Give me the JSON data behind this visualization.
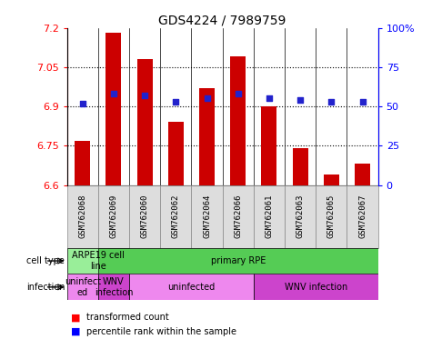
{
  "title": "GDS4224 / 7989759",
  "samples": [
    "GSM762068",
    "GSM762069",
    "GSM762060",
    "GSM762062",
    "GSM762064",
    "GSM762066",
    "GSM762061",
    "GSM762063",
    "GSM762065",
    "GSM762067"
  ],
  "transformed_count": [
    6.77,
    7.18,
    7.08,
    6.84,
    6.97,
    7.09,
    6.9,
    6.74,
    6.64,
    6.68
  ],
  "percentile_rank": [
    52,
    58,
    57,
    53,
    55,
    58,
    55,
    54,
    53,
    53
  ],
  "ylim_left": [
    6.6,
    7.2
  ],
  "ylim_right": [
    0,
    100
  ],
  "yticks_left": [
    6.6,
    6.75,
    6.9,
    7.05,
    7.2
  ],
  "yticks_right": [
    0,
    25,
    50,
    75,
    100
  ],
  "bar_color": "#cc0000",
  "dot_color": "#2222cc",
  "bar_bottom": 6.6,
  "cell_type_spans": [
    {
      "label": "ARPE19 cell\nline",
      "start": 0,
      "end": 1,
      "color": "#99ee99"
    },
    {
      "label": "primary RPE",
      "start": 1,
      "end": 9,
      "color": "#55cc55"
    }
  ],
  "infection_spans": [
    {
      "label": "uninfect\ned",
      "start": 0,
      "end": 0,
      "color": "#ee88ee"
    },
    {
      "label": "WNV\ninfection",
      "start": 1,
      "end": 1,
      "color": "#cc44cc"
    },
    {
      "label": "uninfected",
      "start": 2,
      "end": 5,
      "color": "#ee88ee"
    },
    {
      "label": "WNV infection",
      "start": 6,
      "end": 9,
      "color": "#cc44cc"
    }
  ],
  "grid_color": "#888888",
  "xticklabel_bg": "#dddddd",
  "xticklabel_border": "#888888"
}
